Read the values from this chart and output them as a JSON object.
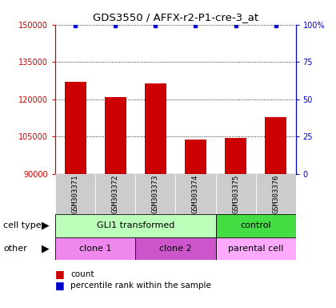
{
  "title": "GDS3550 / AFFX-r2-P1-cre-3_at",
  "samples": [
    "GSM303371",
    "GSM303372",
    "GSM303373",
    "GSM303374",
    "GSM303375",
    "GSM303376"
  ],
  "counts": [
    127000,
    121000,
    126500,
    104000,
    104500,
    113000
  ],
  "ymin": 90000,
  "ymax": 150000,
  "yticks_left": [
    90000,
    105000,
    120000,
    135000,
    150000
  ],
  "yticks_right": [
    0,
    25,
    50,
    75,
    100
  ],
  "bar_color": "#cc0000",
  "dot_color": "#0000cc",
  "cell_type_labels": [
    {
      "label": "GLI1 transformed",
      "start": 0,
      "end": 4,
      "color": "#bbffbb"
    },
    {
      "label": "control",
      "start": 4,
      "end": 6,
      "color": "#44dd44"
    }
  ],
  "other_labels": [
    {
      "label": "clone 1",
      "start": 0,
      "end": 2,
      "color": "#ee88ee"
    },
    {
      "label": "clone 2",
      "start": 2,
      "end": 4,
      "color": "#cc55cc"
    },
    {
      "label": "parental cell",
      "start": 4,
      "end": 6,
      "color": "#ffaaff"
    }
  ],
  "left_axis_color": "#cc0000",
  "right_axis_color": "#0000cc",
  "sample_box_color": "#cccccc",
  "bg_color": "#ffffff"
}
